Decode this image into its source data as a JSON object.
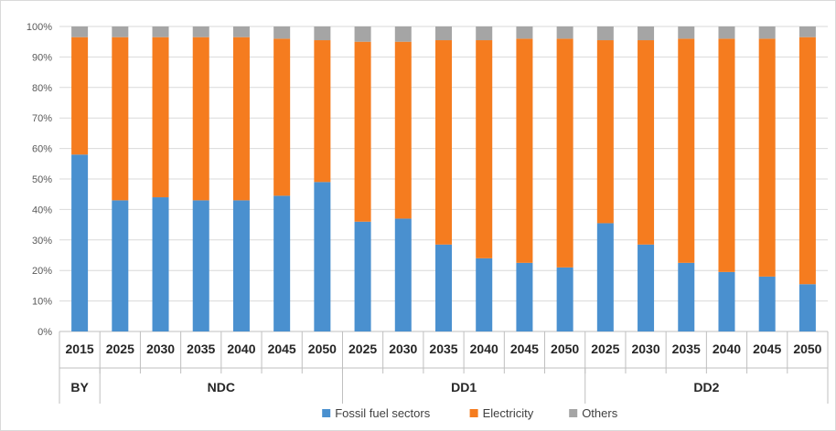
{
  "chart_data": {
    "type": "bar",
    "stacked": true,
    "percent": true,
    "categories": [
      "2015",
      "2025",
      "2030",
      "2035",
      "2040",
      "2045",
      "2050",
      "2025",
      "2030",
      "2035",
      "2040",
      "2045",
      "2050",
      "2025",
      "2030",
      "2035",
      "2040",
      "2045",
      "2050"
    ],
    "groups": [
      {
        "label": "BY",
        "count": 1
      },
      {
        "label": "NDC",
        "count": 6
      },
      {
        "label": "DD1",
        "count": 6
      },
      {
        "label": "DD2",
        "count": 6
      }
    ],
    "series": [
      {
        "name": "Fossil fuel sectors",
        "color": "#4a90cf",
        "values": [
          0.58,
          0.43,
          0.44,
          0.43,
          0.43,
          0.445,
          0.49,
          0.36,
          0.37,
          0.285,
          0.24,
          0.225,
          0.21,
          0.355,
          0.285,
          0.225,
          0.195,
          0.18,
          0.155
        ]
      },
      {
        "name": "Electricity",
        "color": "#f57c1f",
        "values": [
          0.385,
          0.535,
          0.525,
          0.535,
          0.535,
          0.515,
          0.465,
          0.59,
          0.58,
          0.67,
          0.715,
          0.735,
          0.75,
          0.6,
          0.67,
          0.735,
          0.765,
          0.78,
          0.81
        ]
      },
      {
        "name": "Others",
        "color": "#a5a5a5",
        "values": [
          0.035,
          0.035,
          0.035,
          0.035,
          0.035,
          0.04,
          0.045,
          0.05,
          0.05,
          0.045,
          0.045,
          0.04,
          0.04,
          0.045,
          0.045,
          0.04,
          0.04,
          0.04,
          0.035
        ]
      }
    ],
    "yticks": [
      "0%",
      "10%",
      "20%",
      "30%",
      "40%",
      "50%",
      "60%",
      "70%",
      "80%",
      "90%",
      "100%"
    ],
    "ylim": [
      0,
      1
    ],
    "grid": true,
    "legend_position": "bottom"
  }
}
